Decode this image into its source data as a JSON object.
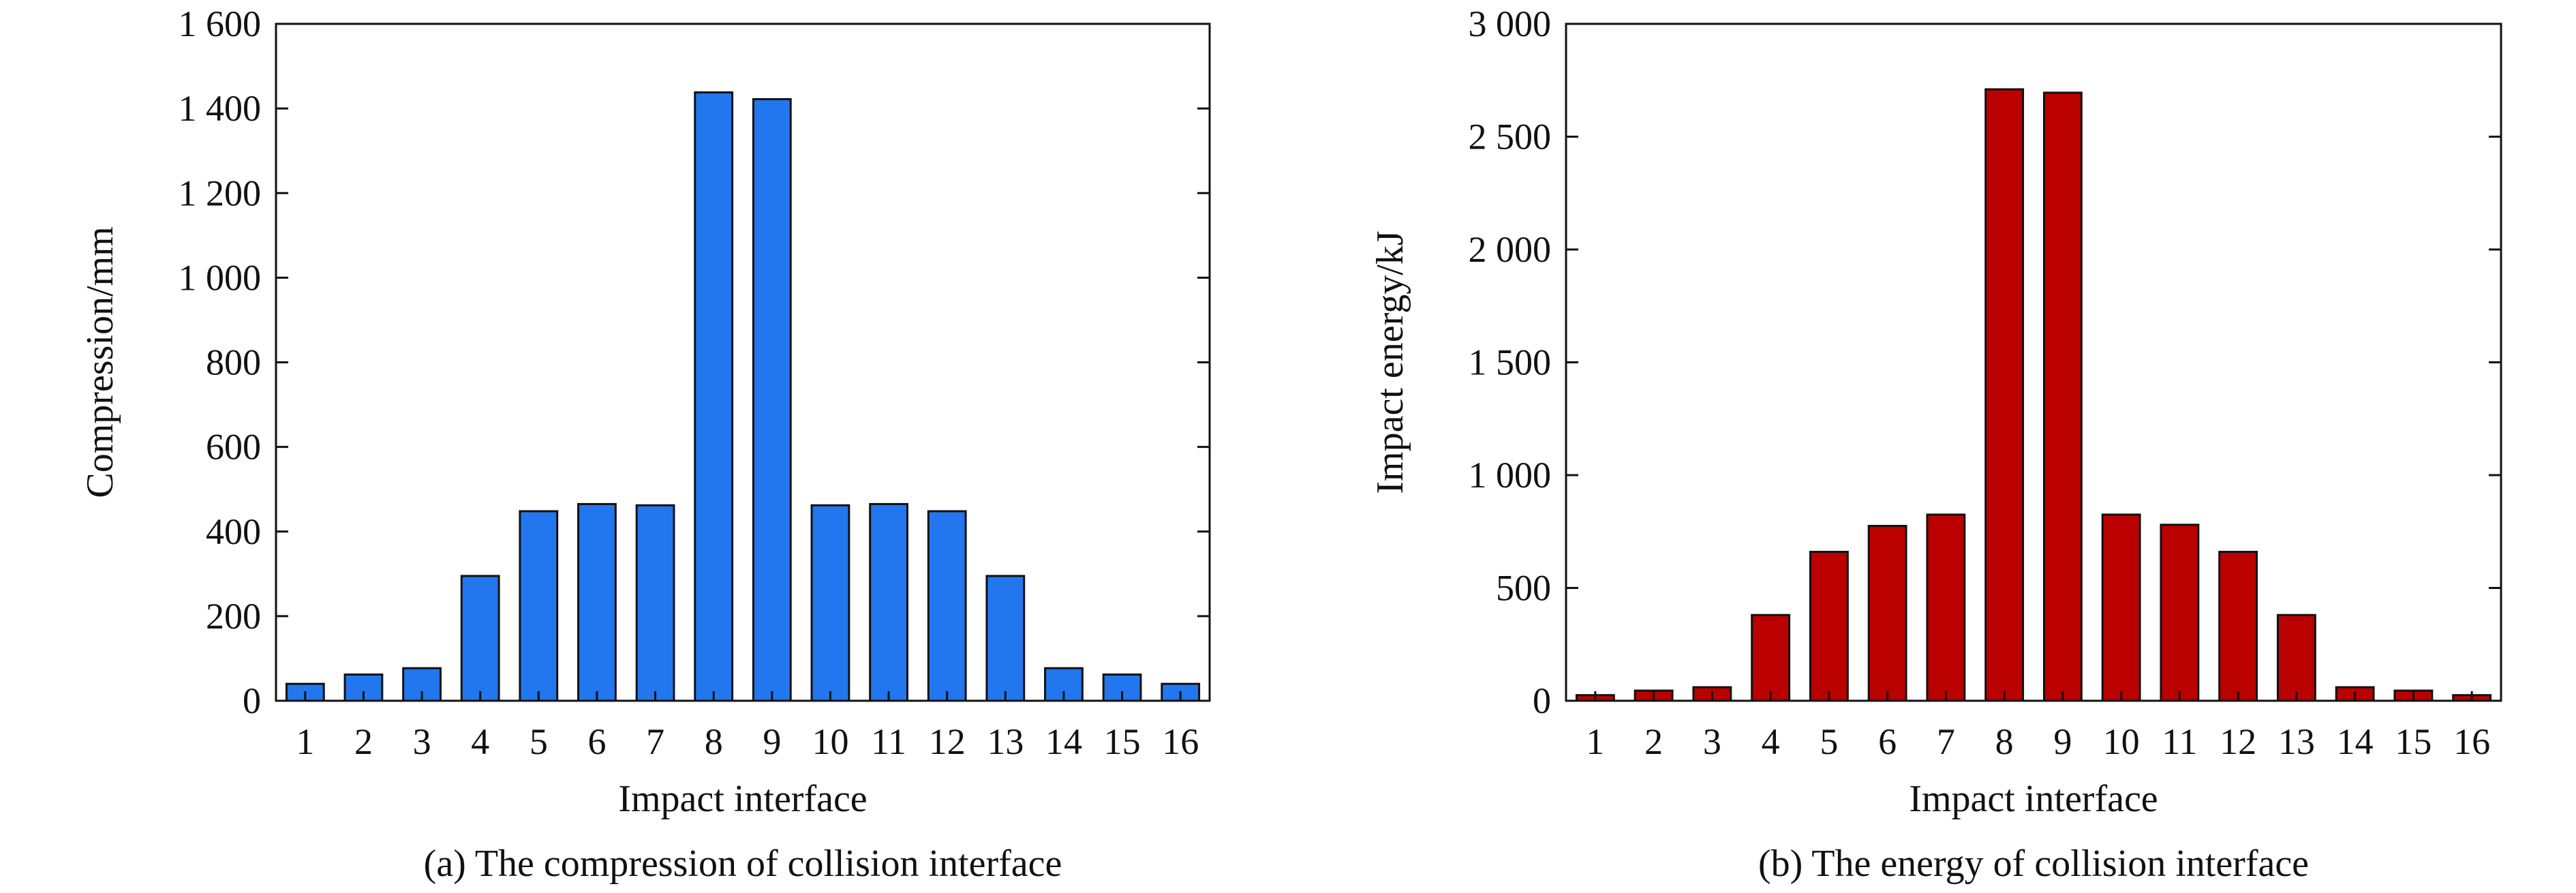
{
  "chart_data": [
    {
      "type": "bar",
      "caption": "(a) The compression of collision interface",
      "xlabel": "Impact interface",
      "ylabel": "Compression/mm",
      "categories": [
        "1",
        "2",
        "3",
        "4",
        "5",
        "6",
        "7",
        "8",
        "9",
        "10",
        "11",
        "12",
        "13",
        "14",
        "15",
        "16"
      ],
      "values": [
        40,
        62,
        77,
        295,
        448,
        465,
        462,
        1438,
        1422,
        462,
        465,
        448,
        295,
        77,
        62,
        40
      ],
      "yticks": [
        0,
        200,
        400,
        600,
        800,
        1000,
        1200,
        1400,
        1600
      ],
      "ytick_labels": [
        "0",
        "200",
        "400",
        "600",
        "800",
        "1 000",
        "1 200",
        "1 400",
        "1 600"
      ],
      "ylim": [
        0,
        1600
      ],
      "grid": false,
      "bar_color": "#2277ee"
    },
    {
      "type": "bar",
      "caption": "(b) The energy of collision interface",
      "xlabel": "Impact interface",
      "ylabel": "Impact energy/kJ",
      "categories": [
        "1",
        "2",
        "3",
        "4",
        "5",
        "6",
        "7",
        "8",
        "9",
        "10",
        "11",
        "12",
        "13",
        "14",
        "15",
        "16"
      ],
      "values": [
        25,
        45,
        60,
        380,
        660,
        775,
        825,
        2710,
        2695,
        825,
        780,
        660,
        380,
        60,
        45,
        25
      ],
      "yticks": [
        0,
        500,
        1000,
        1500,
        2000,
        2500,
        3000
      ],
      "ytick_labels": [
        "0",
        "500",
        "1 000",
        "1 500",
        "2 000",
        "2 500",
        "3 000"
      ],
      "ylim": [
        0,
        3000
      ],
      "grid": false,
      "bar_color": "#bb0000"
    }
  ]
}
